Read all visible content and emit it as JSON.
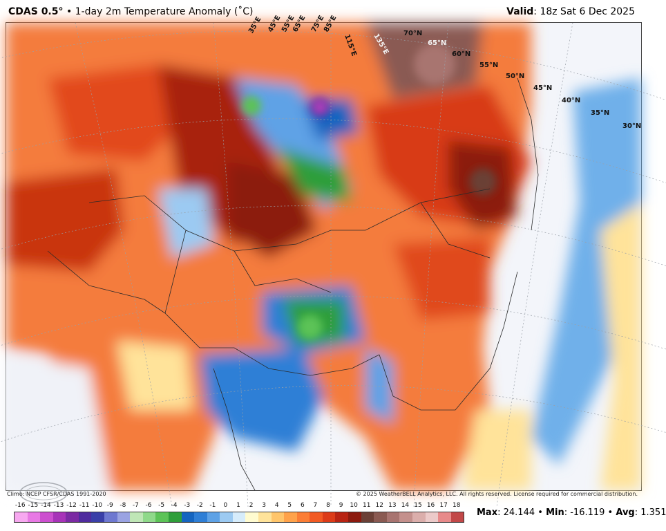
{
  "header": {
    "model": "CDAS 0.5°",
    "bullet": "•",
    "product": "1-day 2m Temperature Anomaly (˚C)",
    "valid_label": "Valid",
    "valid_value": ": 18z Sat 6 Dec 2025"
  },
  "map": {
    "lat_labels": [
      "70°N",
      "65°N",
      "60°N",
      "55°N",
      "50°N",
      "45°N",
      "40°N",
      "35°N",
      "30°N"
    ],
    "lon_labels": [
      "35°E",
      "45°E",
      "55°E",
      "65°E",
      "75°E",
      "85°E",
      "115°E",
      "135°E"
    ],
    "logo_text": "WeatherBELL"
  },
  "footer": {
    "climo": "Climo: NCEP CFSR/CDAS 1991-2020",
    "copyright": "© 2025 WeatherBELL Analytics, LLC. All rights reserved. License required for commercial distribution."
  },
  "legend": {
    "labels": [
      "-16",
      "-15",
      "-14",
      "-13",
      "-12",
      "-11",
      "-10",
      "-9",
      "-8",
      "-7",
      "-6",
      "-5",
      "-4",
      "-3",
      "-2",
      "-1",
      "0",
      "1",
      "2",
      "3",
      "4",
      "5",
      "6",
      "7",
      "8",
      "9",
      "10",
      "11",
      "12",
      "13",
      "14",
      "15",
      "16",
      "17",
      "18"
    ],
    "colors": [
      "#f7a8f0",
      "#e879e4",
      "#cc4fcf",
      "#a733b8",
      "#7b2aa3",
      "#4f2b9e",
      "#3a3fa8",
      "#6e78d0",
      "#9aa3e2",
      "#bfe6b6",
      "#8fd98a",
      "#5cc357",
      "#2f9e3a",
      "#1565c0",
      "#2f7fd6",
      "#5ea2e6",
      "#9ccaf2",
      "#d6ecfb",
      "#fffbd0",
      "#ffe39a",
      "#ffc56b",
      "#ffa24a",
      "#fb7d35",
      "#f25a23",
      "#dc3b18",
      "#b82312",
      "#8c1a0e",
      "#6b4036",
      "#8a5a52",
      "#a87470",
      "#c4908c",
      "#dbaeab",
      "#eccac9",
      "#e88a8a",
      "#c24848"
    ]
  },
  "stats": {
    "max_label": "Max",
    "max_value": ": 24.144 •",
    "min_label": "Min",
    "min_value": ": -16.119 •",
    "avg_label": "Avg",
    "avg_value": ": 1.351"
  }
}
